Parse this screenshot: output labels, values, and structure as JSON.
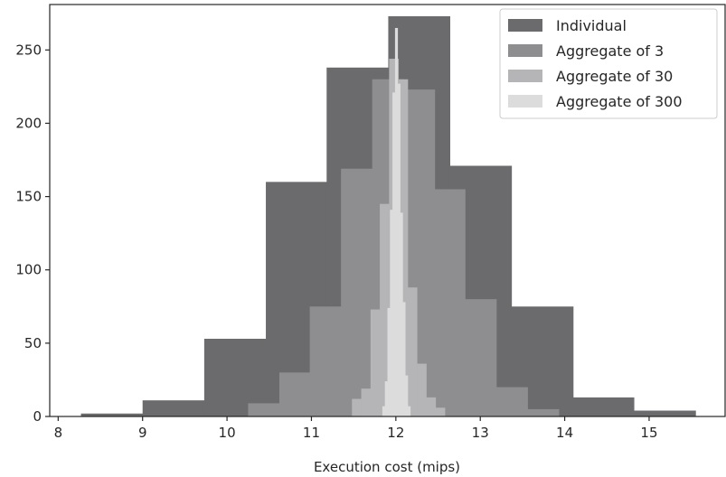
{
  "chart_data": {
    "type": "histogram",
    "title": "",
    "xlabel": "Execution cost (mips)",
    "ylabel": "",
    "xlim": [
      7.9,
      15.9
    ],
    "ylim": [
      0,
      281
    ],
    "xticks": [
      8,
      9,
      10,
      11,
      12,
      13,
      14,
      15
    ],
    "yticks": [
      0,
      50,
      100,
      150,
      200,
      250
    ],
    "grid": false,
    "legend_position": "top-right",
    "series": [
      {
        "name": "Individual",
        "color": "#6b6b6d",
        "edges": [
          8.27,
          9.0,
          9.73,
          10.46,
          11.18,
          11.91,
          12.64,
          13.37,
          14.1,
          14.82,
          15.55
        ],
        "counts": [
          2,
          11,
          53,
          160,
          238,
          273,
          171,
          75,
          13,
          4
        ]
      },
      {
        "name": "Aggregate of 3",
        "color": "#8e8e90",
        "edges": [
          10.25,
          10.62,
          10.98,
          11.35,
          11.72,
          12.09,
          12.46,
          12.82,
          13.19,
          13.56,
          13.93
        ],
        "counts": [
          9,
          30,
          75,
          169,
          230,
          223,
          155,
          80,
          20,
          5
        ]
      },
      {
        "name": "Aggregate of 30",
        "color": "#b5b5b7",
        "edges": [
          11.48,
          11.59,
          11.7,
          11.81,
          11.92,
          12.03,
          12.14,
          12.25,
          12.36,
          12.47,
          12.58
        ],
        "counts": [
          12,
          19,
          73,
          145,
          244,
          230,
          88,
          36,
          13,
          6
        ]
      },
      {
        "name": "Aggregate of 300",
        "color": "#dcdcdc",
        "edges": [
          11.84,
          11.87,
          11.9,
          11.93,
          11.96,
          11.99,
          12.02,
          12.05,
          12.08,
          12.11,
          12.14,
          12.17
        ],
        "counts": [
          7,
          24,
          74,
          141,
          221,
          265,
          227,
          139,
          78,
          28,
          7
        ]
      }
    ]
  }
}
